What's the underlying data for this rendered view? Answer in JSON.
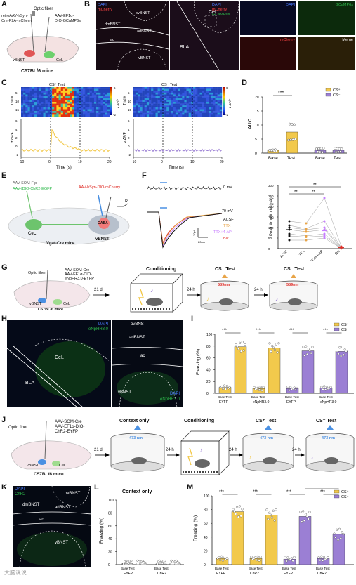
{
  "panel_letters": [
    "A",
    "B",
    "C",
    "D",
    "E",
    "F",
    "G",
    "H",
    "I",
    "J",
    "K",
    "L",
    "M"
  ],
  "colors": {
    "yellow": "#f2c94c",
    "purple": "#9b7fd4",
    "fiber_blue": "#4a90e2",
    "orange_light": "#e8a447",
    "green": "#2db84a",
    "red": "#e0302a",
    "gaba": "#f07a7a"
  },
  "panelA": {
    "optic_fiber": "Optic fiber",
    "virus1_l1": "retroAAV-hSyn-",
    "virus1_l2": "Cre-P2A-mCherry",
    "virus2_l1": "AAV-EF1α-",
    "virus2_l2": "DIO-GCaMP6s",
    "vbnst": "vBNST",
    "cel": "CeL",
    "mice": "C57BL/6 mice"
  },
  "panelB": {
    "m1": {
      "dapi": "DAPI",
      "mcherry": "mCherry",
      "ovbnst": "ovBNST",
      "dmbnst": "dmBNST",
      "adbnst": "adBNST",
      "ac": "ac",
      "vbnst": "vBNST"
    },
    "m2": {
      "dapi": "DAPI",
      "mcherry": "mCherry",
      "gcamp": "GCaMP6s",
      "cel": "CeL",
      "bla": "BLA"
    },
    "small": [
      "DAPI",
      "GCaMP6s",
      "mCherry",
      "Merge"
    ]
  },
  "panelC": {
    "cs_plus": "CS⁺ Test",
    "cs_minus": "CS⁻ Test",
    "trial": "Trial #",
    "zdff_y": "z ΔF/F",
    "cb_top": "6",
    "cb_bot": "-2",
    "cb_label": "z ΔF/F",
    "xlabel": "Time (s)",
    "xticks": [
      "-10",
      "0",
      "10",
      "20"
    ],
    "hm_y1": "5",
    "hm_y2": "10",
    "hm_y3": "15",
    "tr_y_left": [
      "6",
      "4",
      "2",
      "0",
      "-2"
    ],
    "tr_y_right": [
      "6",
      "4",
      "2",
      "0",
      "-2"
    ]
  },
  "panelD": {
    "ylabel": "AUC",
    "yticks": [
      "0",
      "5",
      "10",
      "15",
      "20"
    ],
    "stars": "***",
    "legend_plus": "CS⁺",
    "legend_minus": "CS⁻",
    "xcats": [
      "Base",
      "Test",
      "Base",
      "Test"
    ]
  },
  "panelE": {
    "v1": "AAV-SOM-Flp",
    "v2": "AAV-fDIO-ChR2-EGFP",
    "v3": "AAV-hSyn-DIO-mCherry",
    "cel": "CeL",
    "gaba": "GABA",
    "vbnst": "vBNST",
    "mice": "Vgat-Cre mice",
    "r": "R"
  },
  "panelF": {
    "mv0": "0 mV",
    "mv70": "-70 mV",
    "acsf": "ACSF",
    "ttx": "TTX",
    "ttx4ap": "TTX+4-AP",
    "bic": "Bic",
    "scale_pa": "20pA",
    "scale_ms": "20ms",
    "ylabel": "Peak Amplitude (pA)",
    "yticks": [
      "0",
      "50",
      "100",
      "150",
      "200",
      "250",
      "300"
    ],
    "xcats": [
      "ACSF",
      "TTX",
      "TTX+4-AP",
      "Bic"
    ],
    "stars": [
      "**",
      "**",
      "**"
    ]
  },
  "panelG": {
    "optic_fiber": "Optic fiber",
    "v1": "AAV-SOM-Cre",
    "v2": "AAV-EF1α-DIO-",
    "v3": "eNpHR3.0-EYFP",
    "vbnst": "vBNST",
    "cel": "CeL",
    "mice": "C57BL/6 mice",
    "d1": "21 d",
    "d2": "24 h",
    "d3": "24 h",
    "conditioning": "Conditioning",
    "csp": "CS⁺ Test",
    "csm": "CS⁻ Test",
    "nm1": "589nm",
    "nm2": "589nm"
  },
  "panelH": {
    "dapi": "DAPI",
    "enphr": "eNpHR3.0",
    "cel": "CeL",
    "bla": "BLA",
    "ovbnst": "ovBNST",
    "adbnst": "adBNST",
    "ac": "ac",
    "vbnst": "vBNST",
    "dapi2": "DAPI",
    "enphr2": "eNpHR3.0"
  },
  "panelI": {
    "ylabel": "Freezing (%)",
    "yticks": [
      "0",
      "20",
      "40",
      "60",
      "80",
      "100"
    ],
    "stars": [
      "***",
      "***",
      "***",
      "***"
    ],
    "legend_plus": "CS⁺",
    "legend_minus": "CS⁻",
    "groups": [
      "EYFP",
      "eNpHR3.0",
      "EYFP",
      "eNpHR3.0"
    ],
    "sub": "Base Test"
  },
  "panelJ": {
    "optic_fiber": "Optic fiber",
    "v1": "AAV-SOM-Cre",
    "v2": "AAV-EF1α-DIO-",
    "v3": "ChR2-EYFP",
    "vbnst": "vBNST",
    "cel": "CeL",
    "mice": "C57BL/6 mice",
    "d1": "21 d",
    "d2": "24 h",
    "d3": "24 h",
    "d4": "24 h",
    "ctx": "Context only",
    "conditioning": "Conditioning",
    "csp": "CS⁺ Test",
    "csm": "CS⁻ Test",
    "nm1": "473 nm",
    "nm2": "473 nm",
    "nm3": "473 nm"
  },
  "panelK": {
    "dapi": "DAPI",
    "chr2": "ChR2",
    "ovbnst": "ovBNST",
    "dmbnst": "dmBNST",
    "adbnst": "adBNST",
    "ac": "ac",
    "vbnst": "vBNST"
  },
  "panelL": {
    "title": "Context only",
    "ylabel": "Freezing (%)",
    "yticks": [
      "0",
      "20",
      "40",
      "60",
      "80",
      "100"
    ],
    "groups": [
      "EYFP",
      "ChR2"
    ],
    "sub": "Base Test"
  },
  "panelM": {
    "ylabel": "Freezing (%)",
    "yticks": [
      "0",
      "20",
      "40",
      "60",
      "80",
      "100"
    ],
    "stars": [
      "***",
      "***",
      "***",
      "***",
      "***"
    ],
    "legend_plus": "CS⁺",
    "legend_minus": "CS⁻",
    "groups": [
      "EYFP",
      "ChR2",
      "EYFP",
      "ChR2"
    ],
    "sub": "Base Test"
  },
  "watermark": "大脑说说",
  "chart_data": [
    {
      "type": "bar",
      "panel": "D",
      "ylabel": "AUC",
      "ylim": [
        0,
        20
      ],
      "categories": [
        "Base",
        "Test",
        "Base",
        "Test"
      ],
      "series": [
        {
          "name": "CS⁺",
          "values": [
            1,
            7.5,
            null,
            null
          ]
        },
        {
          "name": "CS⁻",
          "values": [
            null,
            null,
            1,
            1
          ]
        }
      ]
    },
    {
      "type": "scatter",
      "panel": "F",
      "ylabel": "Peak Amplitude (pA)",
      "ylim": [
        0,
        300
      ],
      "categories": [
        "ACSF",
        "TTX",
        "TTX+4-AP",
        "Bic"
      ]
    },
    {
      "type": "bar",
      "panel": "I",
      "ylabel": "Freezing (%)",
      "ylim": [
        0,
        100
      ],
      "categories": [
        "EYFP Base",
        "EYFP Test",
        "eNpHR3.0 Base",
        "eNpHR3.0 Test",
        "EYFP Base",
        "EYFP Test",
        "eNpHR3.0 Base",
        "eNpHR3.0 Test"
      ],
      "series": [
        {
          "name": "CS⁺",
          "values": [
            10,
            79,
            8,
            77,
            null,
            null,
            null,
            null
          ]
        },
        {
          "name": "CS⁻",
          "values": [
            null,
            null,
            null,
            null,
            8,
            72,
            9,
            71
          ]
        }
      ]
    },
    {
      "type": "bar",
      "panel": "L",
      "title": "Context only",
      "ylabel": "Freezing (%)",
      "ylim": [
        0,
        100
      ],
      "categories": [
        "EYFP Base",
        "EYFP Test",
        "ChR2 Base",
        "ChR2 Test"
      ],
      "values": [
        2,
        3,
        1,
        3
      ]
    },
    {
      "type": "bar",
      "panel": "M",
      "ylabel": "Freezing (%)",
      "ylim": [
        0,
        100
      ],
      "categories": [
        "EYFP Base",
        "EYFP Test",
        "ChR2 Base",
        "ChR2 Test",
        "EYFP Base",
        "EYFP Test",
        "ChR2 Base",
        "ChR2 Test"
      ],
      "series": [
        {
          "name": "CS⁺",
          "values": [
            9,
            77,
            9,
            72,
            null,
            null,
            null,
            null
          ]
        },
        {
          "name": "CS⁻",
          "values": [
            null,
            null,
            null,
            null,
            8,
            70,
            9,
            44
          ]
        }
      ]
    }
  ]
}
